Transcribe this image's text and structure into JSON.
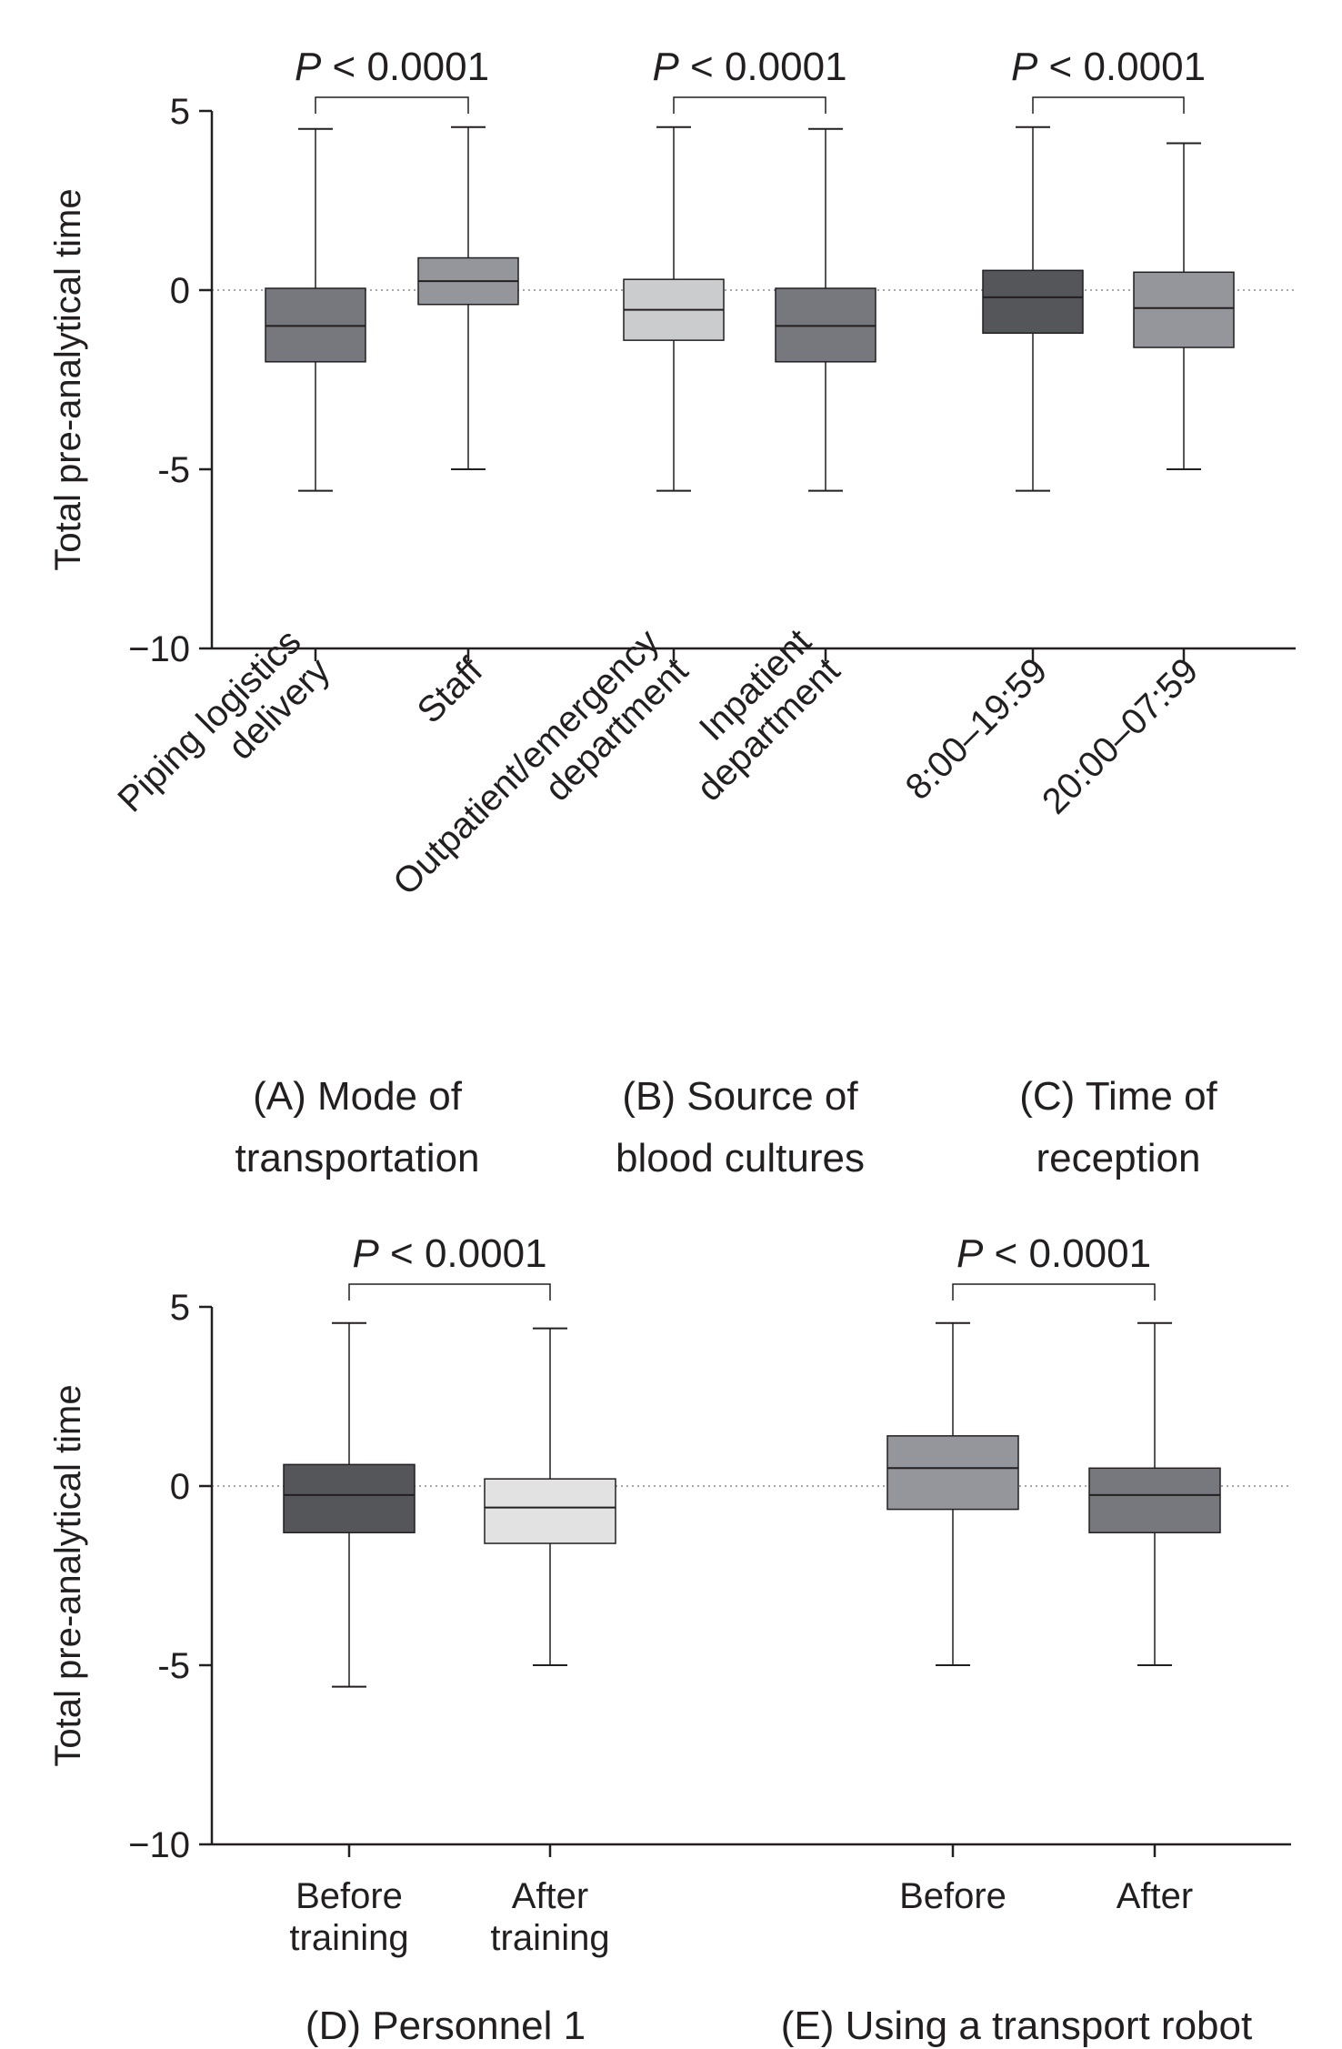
{
  "chart_data": [
    {
      "type": "box",
      "ylabel": "Total pre-analytical time",
      "ylim": [
        -10,
        5
      ],
      "yticks": [
        "5",
        "0",
        "-5",
        "−10"
      ],
      "reference_line_y": 0,
      "categories": [
        {
          "label_lines": [
            "Piping logistics",
            "delivery"
          ],
          "color": "#76787d",
          "whisker_high": 4.5,
          "q3": 0.05,
          "median": -1.0,
          "q1": -2.0,
          "whisker_low": -5.6
        },
        {
          "label_lines": [
            "Staff"
          ],
          "color": "#94969b",
          "whisker_high": 4.55,
          "q3": 0.9,
          "median": 0.25,
          "q1": -0.4,
          "whisker_low": -5.0
        },
        {
          "label_lines": [
            "Outpatient/emergency",
            "department"
          ],
          "color": "#cbcccd",
          "whisker_high": 4.55,
          "q3": 0.3,
          "median": -0.55,
          "q1": -1.4,
          "whisker_low": -5.6
        },
        {
          "label_lines": [
            "Inpatient",
            "department"
          ],
          "color": "#76787d",
          "whisker_high": 4.5,
          "q3": 0.05,
          "median": -1.0,
          "q1": -2.0,
          "whisker_low": -5.6
        },
        {
          "label_lines": [
            "8:00–19:59"
          ],
          "color": "#54565a",
          "whisker_high": 4.55,
          "q3": 0.55,
          "median": -0.2,
          "q1": -1.2,
          "whisker_low": -5.6
        },
        {
          "label_lines": [
            "20:00–07:59"
          ],
          "color": "#94969b",
          "whisker_high": 4.1,
          "q3": 0.5,
          "median": -0.5,
          "q1": -1.6,
          "whisker_low": -5.0
        }
      ],
      "comparisons": [
        {
          "from": 0,
          "to": 1,
          "text_p": "P",
          "text_rest": " < 0.0001"
        },
        {
          "from": 2,
          "to": 3,
          "text_p": "P",
          "text_rest": " < 0.0001"
        },
        {
          "from": 4,
          "to": 5,
          "text_p": "P",
          "text_rest": " < 0.0001"
        }
      ],
      "groups": [
        {
          "label_lines": [
            "(A) Mode of",
            "transportation"
          ],
          "categories": [
            0,
            1
          ]
        },
        {
          "label_lines": [
            "(B) Source of",
            "blood cultures"
          ],
          "categories": [
            2,
            3
          ]
        },
        {
          "label_lines": [
            "(C) Time of",
            "reception"
          ],
          "categories": [
            4,
            5
          ]
        }
      ]
    },
    {
      "type": "box",
      "ylabel": "Total pre-analytical time",
      "ylim": [
        -10,
        5
      ],
      "yticks": [
        "5",
        "0",
        "-5",
        "−10"
      ],
      "reference_line_y": 0,
      "categories": [
        {
          "label_lines": [
            "Before",
            "training"
          ],
          "color": "#54565a",
          "whisker_high": 4.55,
          "q3": 0.6,
          "median": -0.25,
          "q1": -1.3,
          "whisker_low": -5.6
        },
        {
          "label_lines": [
            "After",
            "training"
          ],
          "color": "#e2e2e3",
          "whisker_high": 4.4,
          "q3": 0.2,
          "median": -0.6,
          "q1": -1.6,
          "whisker_low": -5.0
        },
        {
          "label_lines": [
            "Before"
          ],
          "color": "#94969b",
          "whisker_high": 4.55,
          "q3": 1.4,
          "median": 0.5,
          "q1": -0.65,
          "whisker_low": -5.0
        },
        {
          "label_lines": [
            "After"
          ],
          "color": "#76787d",
          "whisker_high": 4.55,
          "q3": 0.5,
          "median": -0.25,
          "q1": -1.3,
          "whisker_low": -5.0
        }
      ],
      "comparisons": [
        {
          "from": 0,
          "to": 1,
          "text_p": "P",
          "text_rest": " < 0.0001"
        },
        {
          "from": 2,
          "to": 3,
          "text_p": "P",
          "text_rest": " < 0.0001"
        }
      ],
      "groups": [
        {
          "label_lines": [
            "(D) Personnel 1"
          ],
          "categories": [
            0,
            1
          ]
        },
        {
          "label_lines": [
            "(E) Using a transport robot"
          ],
          "categories": [
            2,
            3
          ]
        }
      ]
    }
  ]
}
